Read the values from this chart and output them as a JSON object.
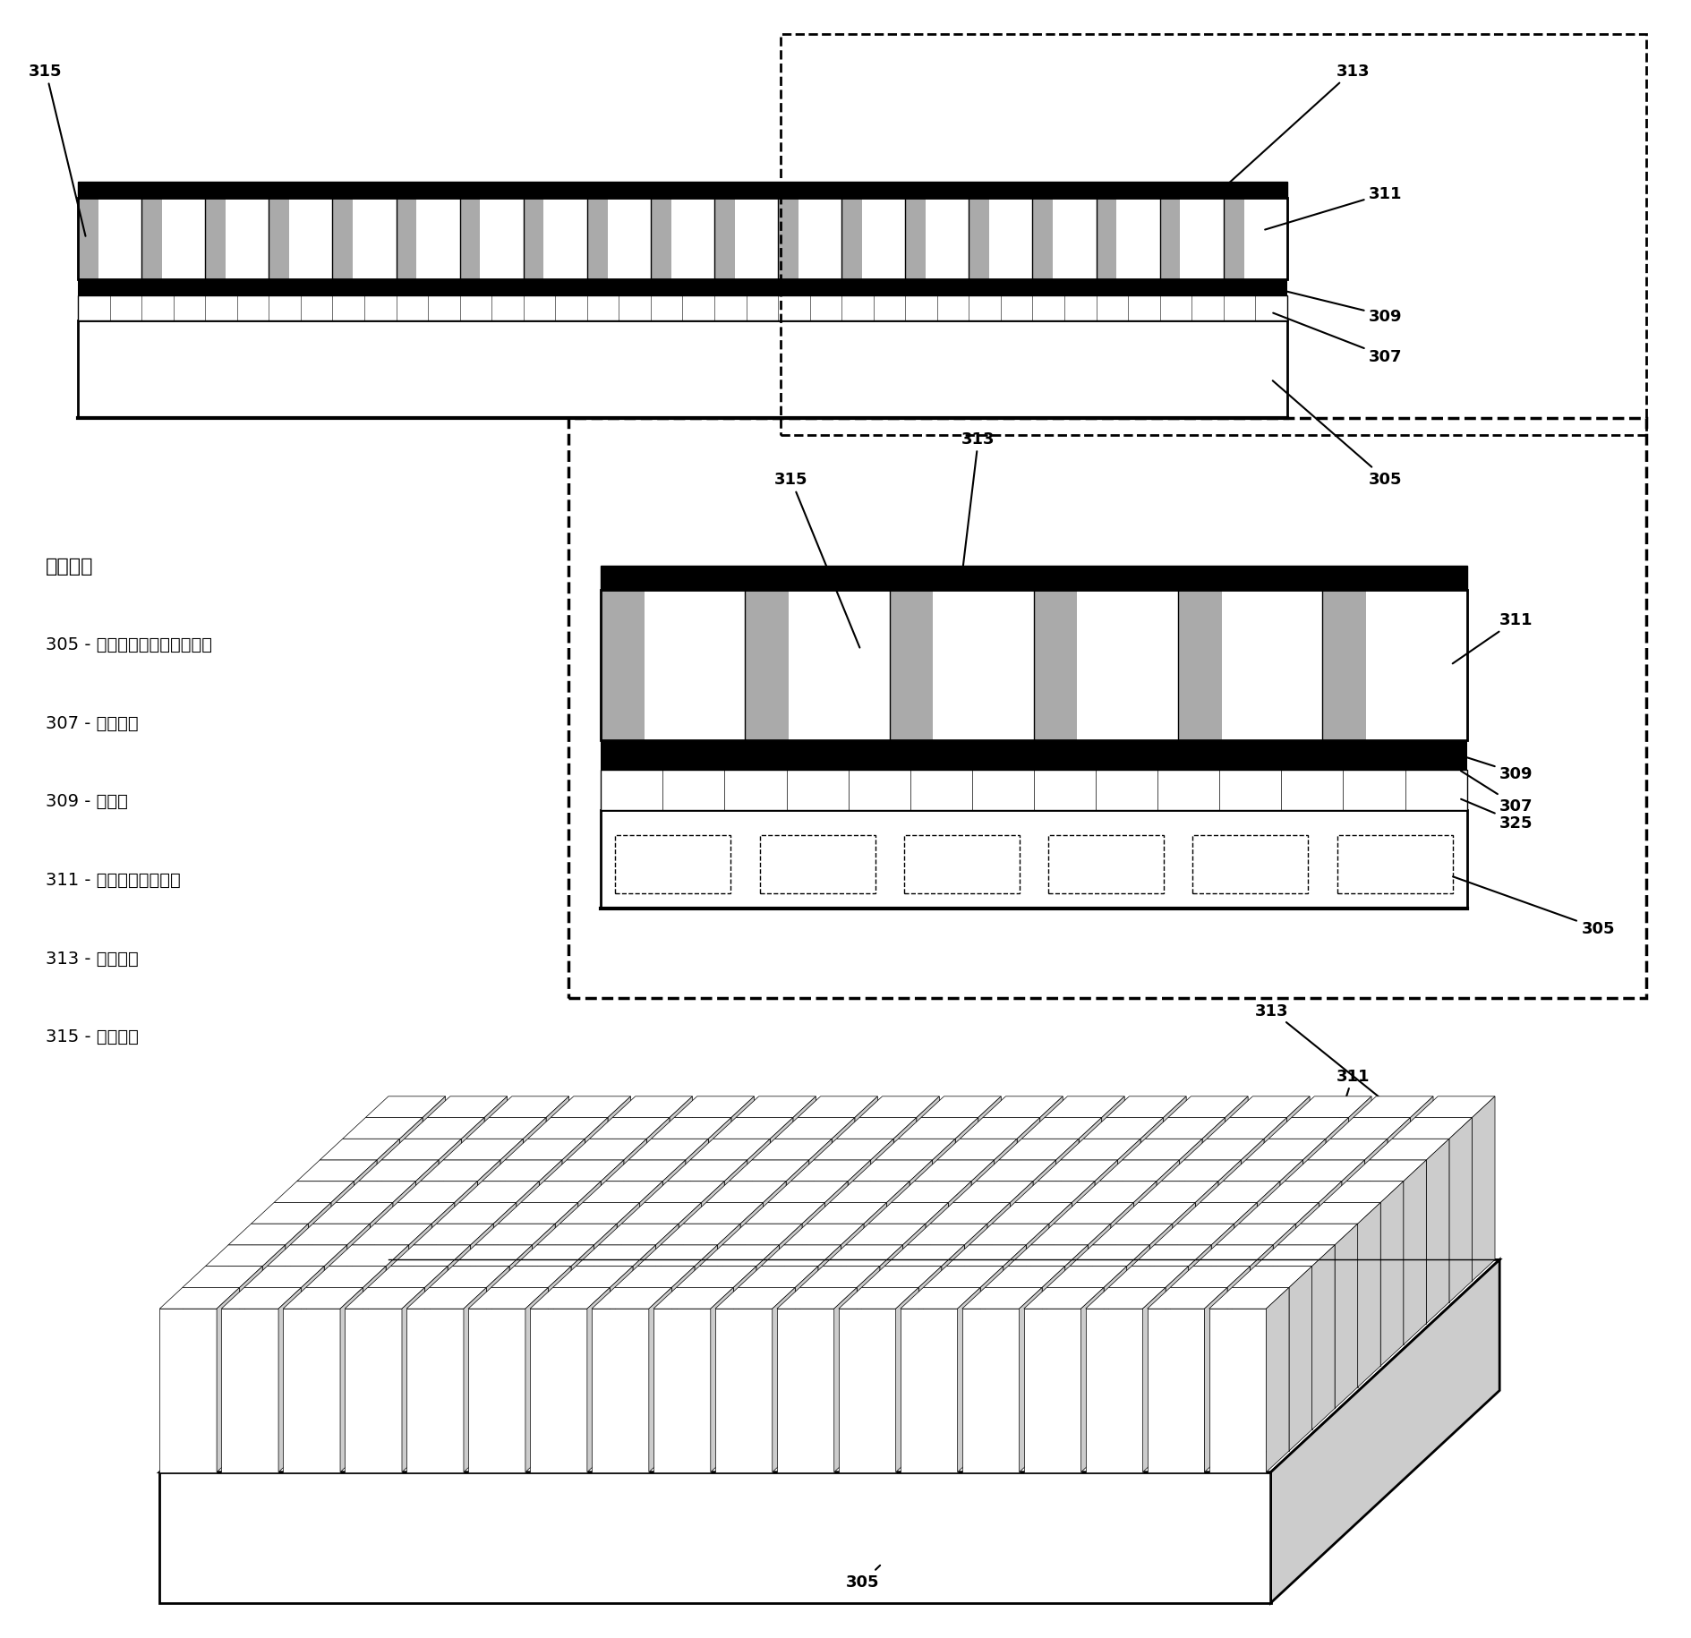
{
  "fig_width": 18.9,
  "fig_height": 18.31,
  "bg_color": "#ffffff",
  "black_color": "#000000",
  "gray_fill": "#aaaaaa",
  "light_gray": "#cccccc",
  "white_fill": "#ffffff",
  "legend_title": "特征图例",
  "legend_items": [
    "305 - 具有集成电路的基底芯片",
    "307 - 底部电极",
    "309 - 绝缘层",
    "311 - 超声波换能器元件",
    "313 - 顶部电极",
    "315 - 填充材料"
  ]
}
